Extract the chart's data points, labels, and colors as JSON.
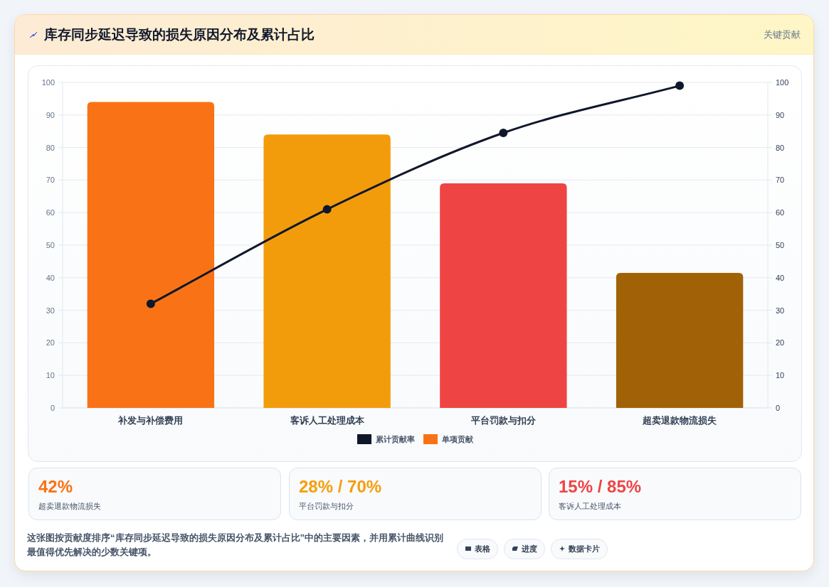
{
  "chart_data": [
    {
      "type": "bar",
      "title": "库存同步延迟导致的损失原因分布及累计占比",
      "annotations": [
        "关键贡献",
        "这张图按贡献度排序“库存同步延迟导致的损失原因分布及累计占比”中的主要因素，并用累计曲线识别最值得优先解决的少数关键项。",
        "表格",
        "进度",
        "数据卡片"
      ],
      "categories": [
        "补发与补偿费用",
        "客诉人工处理成本",
        "平台罚款与扣分",
        "超卖退款物流损失"
      ],
      "series": [
        {
          "name": "累计贡献率",
          "type": "line",
          "color": "#0f172a",
          "values": [
            32,
            61,
            84.5,
            99
          ]
        },
        {
          "name": "单项贡献",
          "type": "bar",
          "color": "#f97316",
          "colors": [
            "#f97316",
            "#f39c0b",
            "#ef4444",
            "#a16207"
          ],
          "values": [
            94,
            84,
            69,
            41.5
          ]
        }
      ],
      "ylim": [
        0,
        100
      ],
      "yticks": [
        0,
        10,
        20,
        30,
        40,
        50,
        60,
        70,
        80,
        90,
        100
      ],
      "y2lim": [
        0,
        100
      ],
      "y2ticks": [
        0,
        10,
        20,
        30,
        40,
        50,
        60,
        70,
        80,
        90,
        100
      ],
      "grid": "y",
      "legend": "bottom",
      "marker": "circle"
    },
    {
      "type": "other",
      "title": "42%",
      "subtitle": "超卖退款物流损失",
      "color": "#f97316"
    },
    {
      "type": "other",
      "title": "28% / 70%",
      "subtitle": "平台罚款与扣分",
      "color": "#f59e0b"
    },
    {
      "type": "other",
      "title": "15% / 85%",
      "subtitle": "客诉人工处理成本",
      "color": "#ef4444"
    }
  ]
}
